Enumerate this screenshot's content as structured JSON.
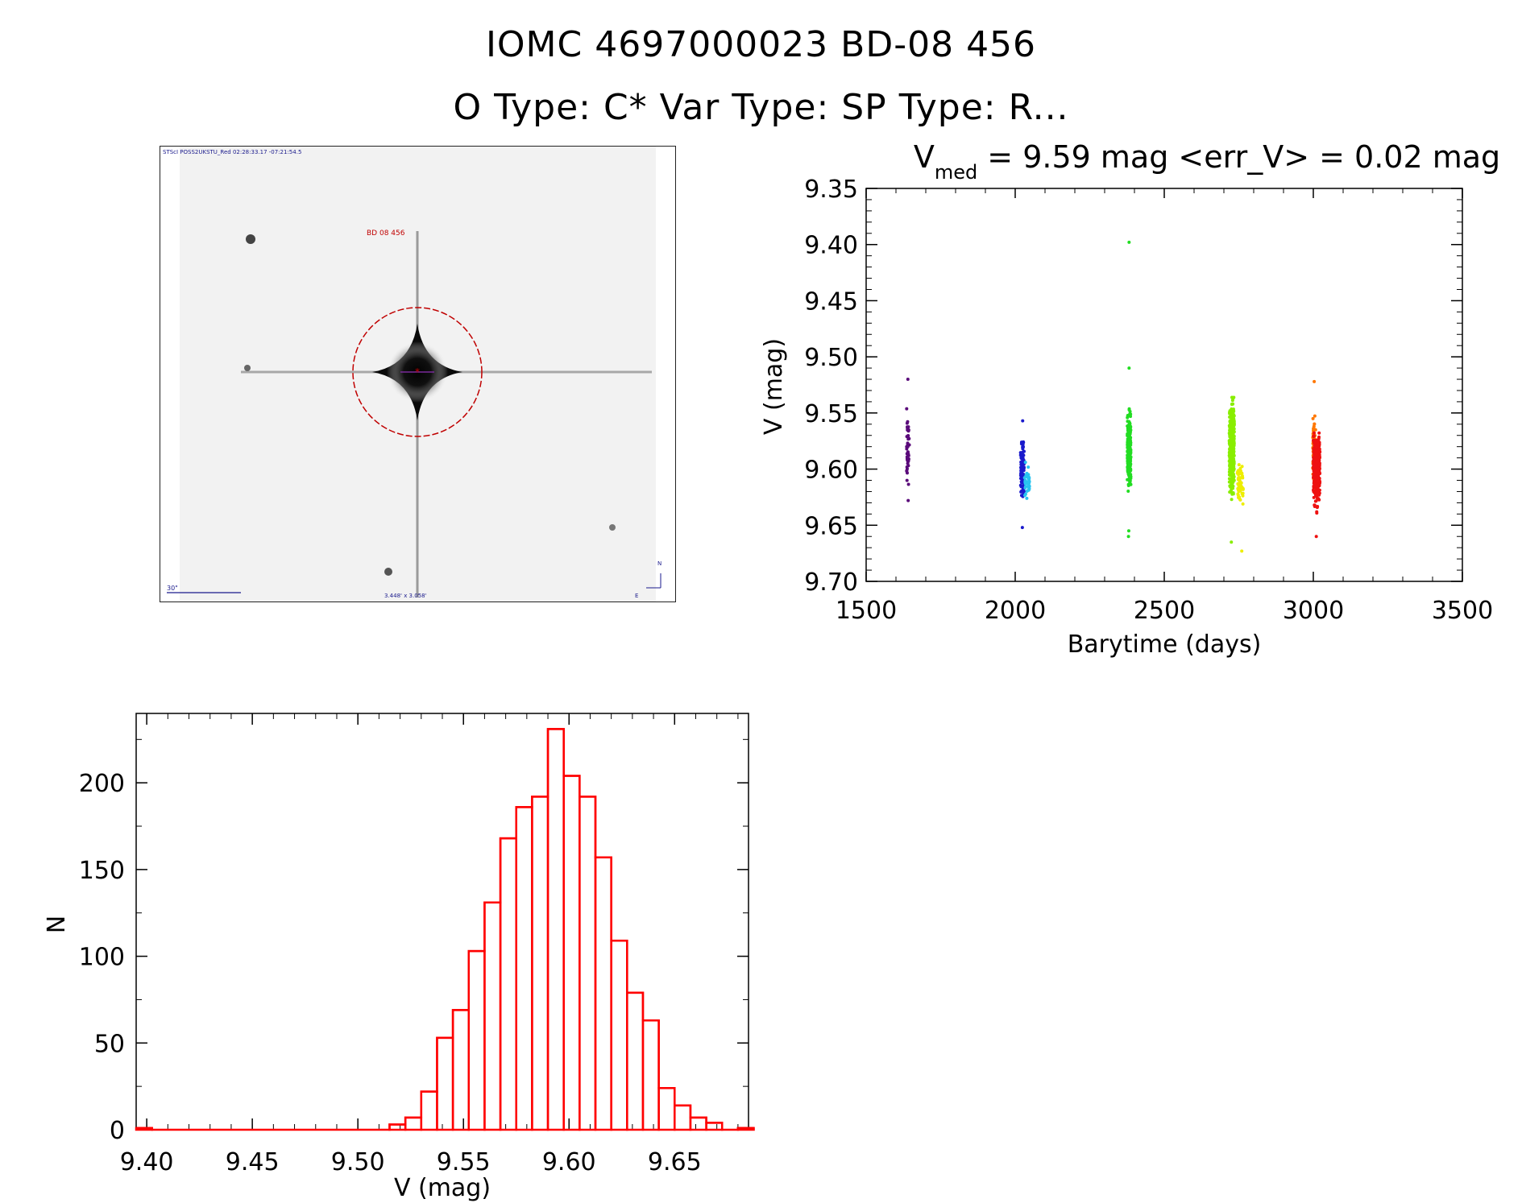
{
  "header": {
    "line1": "IOMC 4697000023   BD-08   456",
    "line2": "O Type: C*  Var Type:   SP Type: R..."
  },
  "image_panel": {
    "caption_top": "STScI POSS2UKSTU_Red 02:28:33.17 -07:21:54.5",
    "object_label": "BD 08 456",
    "scale_label": "30\"",
    "fov_label": "3.448' x 3.058'",
    "compass_n": "N",
    "compass_e": "E"
  },
  "colors": {
    "histogram": "#ff0000",
    "marker": "#c00000",
    "series": [
      "#5a0a7a",
      "#1a1acc",
      "#29c4f0",
      "#22dd22",
      "#88ee00",
      "#eeee00",
      "#ff7700",
      "#ee1111"
    ]
  },
  "chart_data": [
    {
      "type": "scatter",
      "title_main": "V",
      "title_sub": "med",
      "title_rest": " = 9.59 mag <err_V> = 0.02 mag",
      "xlabel": "Barytime (days)",
      "ylabel": "V (mag)",
      "xlim": [
        1500,
        3500
      ],
      "ylim": [
        9.7,
        9.35
      ],
      "xticks": [
        1500,
        2000,
        2500,
        3000,
        3500
      ],
      "yticks": [
        9.35,
        9.4,
        9.45,
        9.5,
        9.55,
        9.6,
        9.65,
        9.7
      ],
      "ytick_labels": [
        "9.35",
        "9.40",
        "9.45",
        "9.50",
        "9.55",
        "9.60",
        "9.65",
        "9.70"
      ],
      "series": [
        {
          "color_index": 0,
          "x_range": [
            1635,
            1645
          ],
          "y_range": [
            9.535,
            9.625
          ],
          "n": 45,
          "extra": [
            [
              1640,
              9.52
            ],
            [
              1641,
              9.628
            ]
          ]
        },
        {
          "color_index": 1,
          "x_range": [
            2018,
            2030
          ],
          "y_range": [
            9.565,
            9.635
          ],
          "n": 90,
          "extra": [
            [
              2025,
              9.557
            ],
            [
              2024,
              9.652
            ]
          ]
        },
        {
          "color_index": 2,
          "x_range": [
            2030,
            2048
          ],
          "y_range": [
            9.59,
            9.63
          ],
          "n": 40,
          "extra": []
        },
        {
          "color_index": 3,
          "x_range": [
            2376,
            2388
          ],
          "y_range": [
            9.54,
            9.63
          ],
          "n": 220,
          "extra": [
            [
              2382,
              9.398
            ],
            [
              2382,
              9.51
            ],
            [
              2381,
              9.655
            ],
            [
              2380,
              9.66
            ]
          ]
        },
        {
          "color_index": 4,
          "x_range": [
            2718,
            2735
          ],
          "y_range": [
            9.52,
            9.635
          ],
          "n": 320,
          "extra": [
            [
              2725,
              9.665
            ]
          ]
        },
        {
          "color_index": 5,
          "x_range": [
            2745,
            2765
          ],
          "y_range": [
            9.585,
            9.64
          ],
          "n": 60,
          "extra": [
            [
              2760,
              9.673
            ]
          ]
        },
        {
          "color_index": 6,
          "x_range": [
            2998,
            3008
          ],
          "y_range": [
            9.54,
            9.62
          ],
          "n": 60,
          "extra": [
            [
              3003,
              9.522
            ]
          ]
        },
        {
          "color_index": 7,
          "x_range": [
            3000,
            3022
          ],
          "y_range": [
            9.555,
            9.645
          ],
          "n": 320,
          "extra": [
            [
              3010,
              9.66
            ]
          ]
        }
      ]
    },
    {
      "type": "bar",
      "style": "step-histogram",
      "xlabel": "V (mag)",
      "ylabel": "N",
      "xlim": [
        9.395,
        9.685
      ],
      "ylim": [
        0,
        240
      ],
      "xticks": [
        9.4,
        9.45,
        9.5,
        9.55,
        9.6,
        9.65
      ],
      "xtick_labels": [
        "9.40",
        "9.45",
        "9.50",
        "9.55",
        "9.60",
        "9.65"
      ],
      "yticks": [
        0,
        50,
        100,
        150,
        200
      ],
      "bin_width": 0.0075,
      "bin_start": 9.395,
      "values": [
        1,
        0,
        0,
        0,
        0,
        0,
        0,
        0,
        0,
        0,
        0,
        0,
        0,
        0,
        0,
        0,
        3,
        7,
        22,
        53,
        69,
        103,
        131,
        168,
        186,
        192,
        231,
        204,
        192,
        157,
        109,
        79,
        63,
        24,
        14,
        7,
        4,
        0,
        1
      ]
    }
  ]
}
